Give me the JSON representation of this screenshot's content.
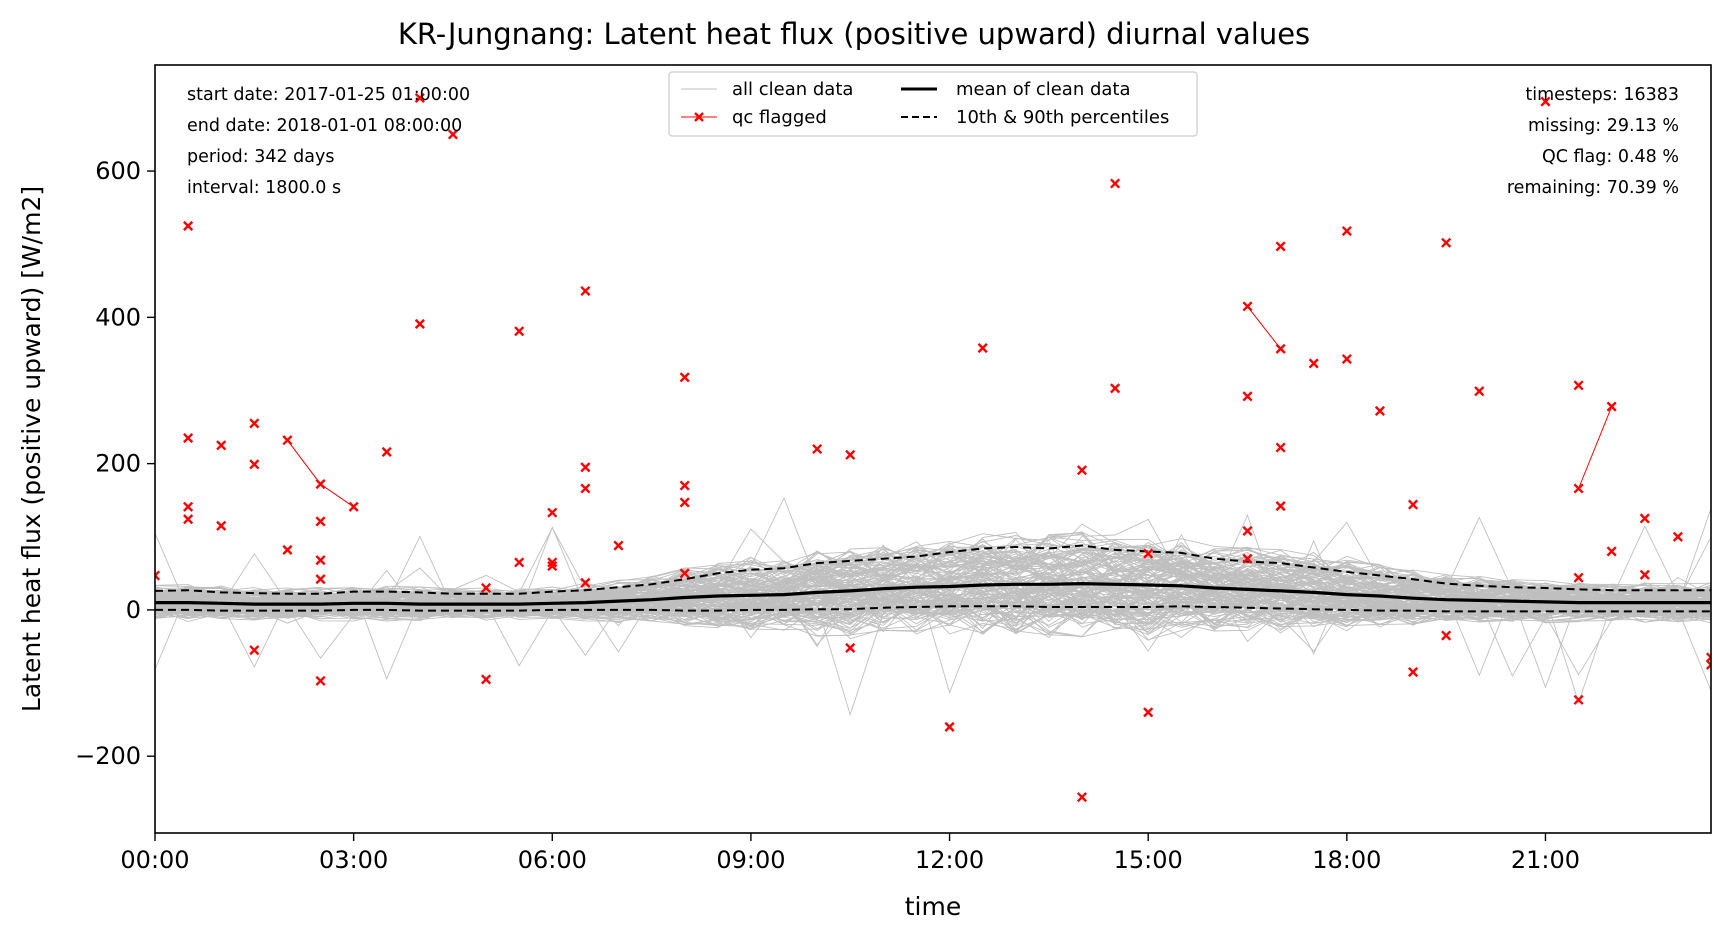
{
  "chart_data": {
    "type": "line",
    "title": "KR-Jungnang: Latent heat flux (positive upward) diurnal values",
    "xlabel": "time",
    "ylabel": "Latent heat flux (positive upward) [W/m2]",
    "xlim_hours": [
      0,
      23.5
    ],
    "ylim": [
      -305,
      745
    ],
    "xticks": [
      {
        "hour": 0,
        "label": "00:00"
      },
      {
        "hour": 3,
        "label": "03:00"
      },
      {
        "hour": 6,
        "label": "06:00"
      },
      {
        "hour": 9,
        "label": "09:00"
      },
      {
        "hour": 12,
        "label": "12:00"
      },
      {
        "hour": 15,
        "label": "15:00"
      },
      {
        "hour": 18,
        "label": "18:00"
      },
      {
        "hour": 21,
        "label": "21:00"
      }
    ],
    "yticks": [
      {
        "value": -200,
        "label": "−200"
      },
      {
        "value": 0,
        "label": "0"
      },
      {
        "value": 200,
        "label": "200"
      },
      {
        "value": 400,
        "label": "400"
      },
      {
        "value": 600,
        "label": "600"
      }
    ],
    "grid": false,
    "legend_position": "top-center",
    "legend": {
      "all_clean": "all clean data",
      "qc_flagged": "qc flagged",
      "mean": "mean of clean data",
      "percentiles": "10th & 90th percentiles"
    },
    "info_left": [
      "start date: 2017-01-25 01:00:00",
      "end date: 2018-01-01 08:00:00",
      "period: 342 days",
      "interval: 1800.0 s"
    ],
    "info_right": [
      "timesteps: 16383",
      "missing: 29.13 %",
      "QC flag: 0.48 %",
      "remaining: 70.39 %"
    ],
    "colors": {
      "clean": "#bfbfbf",
      "qc": "#ff0000",
      "mean": "#000000",
      "percentile": "#000000"
    },
    "hours": [
      0,
      0.5,
      1,
      1.5,
      2,
      2.5,
      3,
      3.5,
      4,
      4.5,
      5,
      5.5,
      6,
      6.5,
      7,
      7.5,
      8,
      8.5,
      9,
      9.5,
      10,
      10.5,
      11,
      11.5,
      12,
      12.5,
      13,
      13.5,
      14,
      14.5,
      15,
      15.5,
      16,
      16.5,
      17,
      17.5,
      18,
      18.5,
      19,
      19.5,
      20,
      20.5,
      21,
      21.5,
      22,
      22.5,
      23,
      23.5
    ],
    "series": [
      {
        "name": "mean of clean data",
        "values": [
          10,
          10,
          9,
          8,
          8,
          8,
          9,
          9,
          8,
          8,
          8,
          8,
          9,
          10,
          12,
          14,
          17,
          19,
          20,
          21,
          24,
          26,
          29,
          31,
          32,
          34,
          35,
          35,
          36,
          35,
          34,
          33,
          30,
          28,
          26,
          24,
          21,
          19,
          16,
          14,
          13,
          12,
          11,
          10,
          10,
          10,
          10,
          10
        ]
      },
      {
        "name": "10th percentile",
        "values": [
          0,
          0,
          -1,
          -1,
          -1,
          -1,
          0,
          0,
          -1,
          -1,
          -1,
          -1,
          0,
          0,
          0,
          0,
          -1,
          -1,
          0,
          0,
          1,
          1,
          3,
          4,
          5,
          5,
          5,
          4,
          4,
          4,
          4,
          5,
          4,
          3,
          2,
          1,
          0,
          -1,
          -1,
          -2,
          -2,
          -2,
          -2,
          -2,
          -2,
          -2,
          -2,
          -2
        ]
      },
      {
        "name": "90th percentile",
        "values": [
          26,
          27,
          24,
          23,
          22,
          22,
          25,
          25,
          24,
          22,
          22,
          22,
          25,
          27,
          31,
          35,
          42,
          50,
          55,
          57,
          64,
          67,
          70,
          73,
          79,
          84,
          86,
          84,
          88,
          82,
          80,
          78,
          70,
          66,
          64,
          58,
          52,
          47,
          42,
          36,
          33,
          31,
          30,
          28,
          27,
          27,
          27,
          27
        ]
      }
    ],
    "qc_flagged_points": [
      [
        0,
        47
      ],
      [
        0.5,
        525
      ],
      [
        0.5,
        235
      ],
      [
        0.5,
        141
      ],
      [
        0.5,
        124
      ],
      [
        1,
        225
      ],
      [
        1,
        115
      ],
      [
        1.5,
        255
      ],
      [
        1.5,
        199
      ],
      [
        1.5,
        -55
      ],
      [
        2,
        232
      ],
      [
        2,
        82
      ],
      [
        2.5,
        172
      ],
      [
        2.5,
        121
      ],
      [
        2.5,
        68
      ],
      [
        2.5,
        42
      ],
      [
        2.5,
        -97
      ],
      [
        3,
        141
      ],
      [
        3.5,
        216
      ],
      [
        4,
        391
      ],
      [
        4,
        700
      ],
      [
        4.5,
        650
      ],
      [
        5,
        30
      ],
      [
        5,
        -95
      ],
      [
        5.5,
        381
      ],
      [
        5.5,
        65
      ],
      [
        6,
        133
      ],
      [
        6,
        65
      ],
      [
        6,
        60
      ],
      [
        6.5,
        436
      ],
      [
        6.5,
        195
      ],
      [
        6.5,
        166
      ],
      [
        6.5,
        37
      ],
      [
        7,
        88
      ],
      [
        8,
        318
      ],
      [
        8,
        170
      ],
      [
        8,
        147
      ],
      [
        8,
        50
      ],
      [
        10,
        220
      ],
      [
        10.5,
        212
      ],
      [
        10.5,
        -52
      ],
      [
        12,
        -160
      ],
      [
        12.5,
        358
      ],
      [
        14,
        191
      ],
      [
        14,
        -256
      ],
      [
        14.5,
        583
      ],
      [
        14.5,
        303
      ],
      [
        15,
        77
      ],
      [
        15,
        -140
      ],
      [
        16.5,
        415
      ],
      [
        16.5,
        292
      ],
      [
        16.5,
        108
      ],
      [
        16.5,
        70
      ],
      [
        17,
        497
      ],
      [
        17,
        357
      ],
      [
        17,
        222
      ],
      [
        17,
        142
      ],
      [
        17.5,
        337
      ],
      [
        18,
        518
      ],
      [
        18,
        343
      ],
      [
        18.5,
        272
      ],
      [
        19,
        144
      ],
      [
        19,
        -85
      ],
      [
        19.5,
        502
      ],
      [
        19.5,
        -35
      ],
      [
        20,
        299
      ],
      [
        21,
        695
      ],
      [
        21.5,
        307
      ],
      [
        21.5,
        166
      ],
      [
        21.5,
        44
      ],
      [
        21.5,
        -123
      ],
      [
        22,
        278
      ],
      [
        22,
        80
      ],
      [
        22.5,
        125
      ],
      [
        22.5,
        48
      ],
      [
        23,
        100
      ],
      [
        23.5,
        -65
      ],
      [
        23.5,
        -75
      ]
    ],
    "qc_flagged_segments": [
      [
        [
          2,
          232
        ],
        [
          2.5,
          172
        ],
        [
          3,
          141
        ]
      ],
      [
        [
          16.5,
          415
        ],
        [
          17,
          357
        ]
      ],
      [
        [
          21.5,
          166
        ],
        [
          22,
          278
        ]
      ]
    ]
  }
}
